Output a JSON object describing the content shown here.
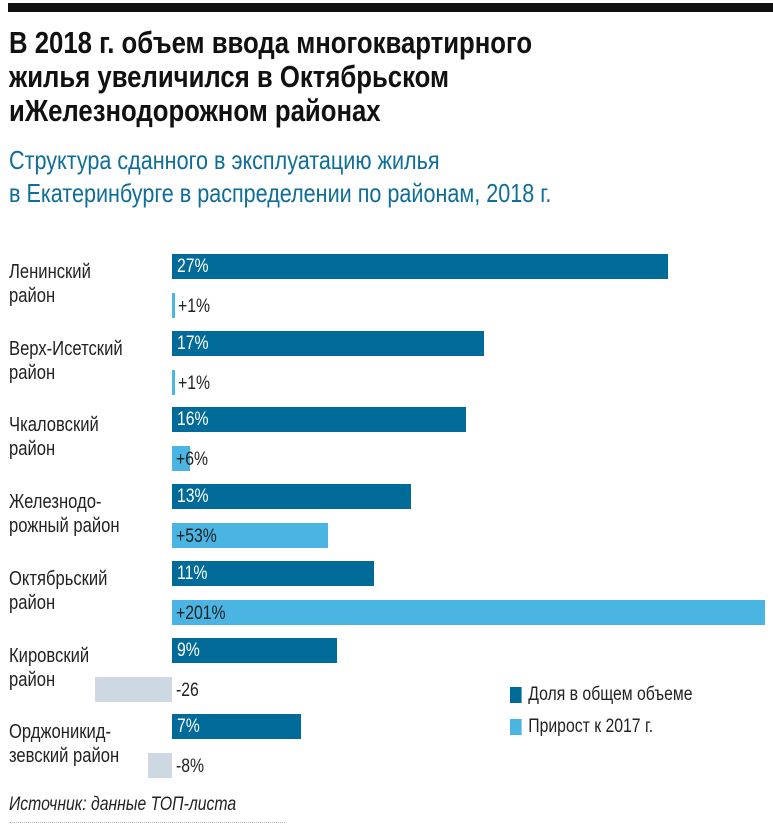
{
  "title": [
    "В 2018 г. объем ввода многоквартирного",
    "жилья увеличился в Октябрьском",
    "иЖелезнодорожном районах"
  ],
  "subtitle": [
    "Структура сданного в эксплуатацию жилья",
    "в Екатеринбурге в распределении по районам, 2018 г."
  ],
  "chart_data": {
    "type": "bar",
    "orientation": "horizontal",
    "categories": [
      [
        "Ленинский",
        "район"
      ],
      [
        "Верх-Исетский",
        "район"
      ],
      [
        "Чкаловский",
        "район"
      ],
      [
        "Железнодо-",
        "рожный район"
      ],
      [
        "Октябрьский",
        "район"
      ],
      [
        "Кировский",
        "район"
      ],
      [
        "Орджоникид-",
        "зевский район"
      ]
    ],
    "series": [
      {
        "name": "Доля в общем объеме",
        "color": "#006b99",
        "values": [
          27,
          17,
          16,
          13,
          11,
          9,
          7
        ],
        "labels": [
          "27%",
          "17%",
          "16%",
          "13%",
          "11%",
          "9%",
          "7%"
        ]
      },
      {
        "name": "Прирост к 2017 г.",
        "color": "#4ab4e3",
        "negative_color": "#cdd8e2",
        "values": [
          1,
          1,
          6,
          53,
          201,
          -26,
          -8
        ],
        "labels": [
          "+1%",
          "+1%",
          "+6%",
          "+53%",
          "+201%",
          "-26",
          "-8%"
        ]
      }
    ],
    "legend_placement": "bottom-right"
  },
  "source": "Источник: данные ТОП-листа"
}
